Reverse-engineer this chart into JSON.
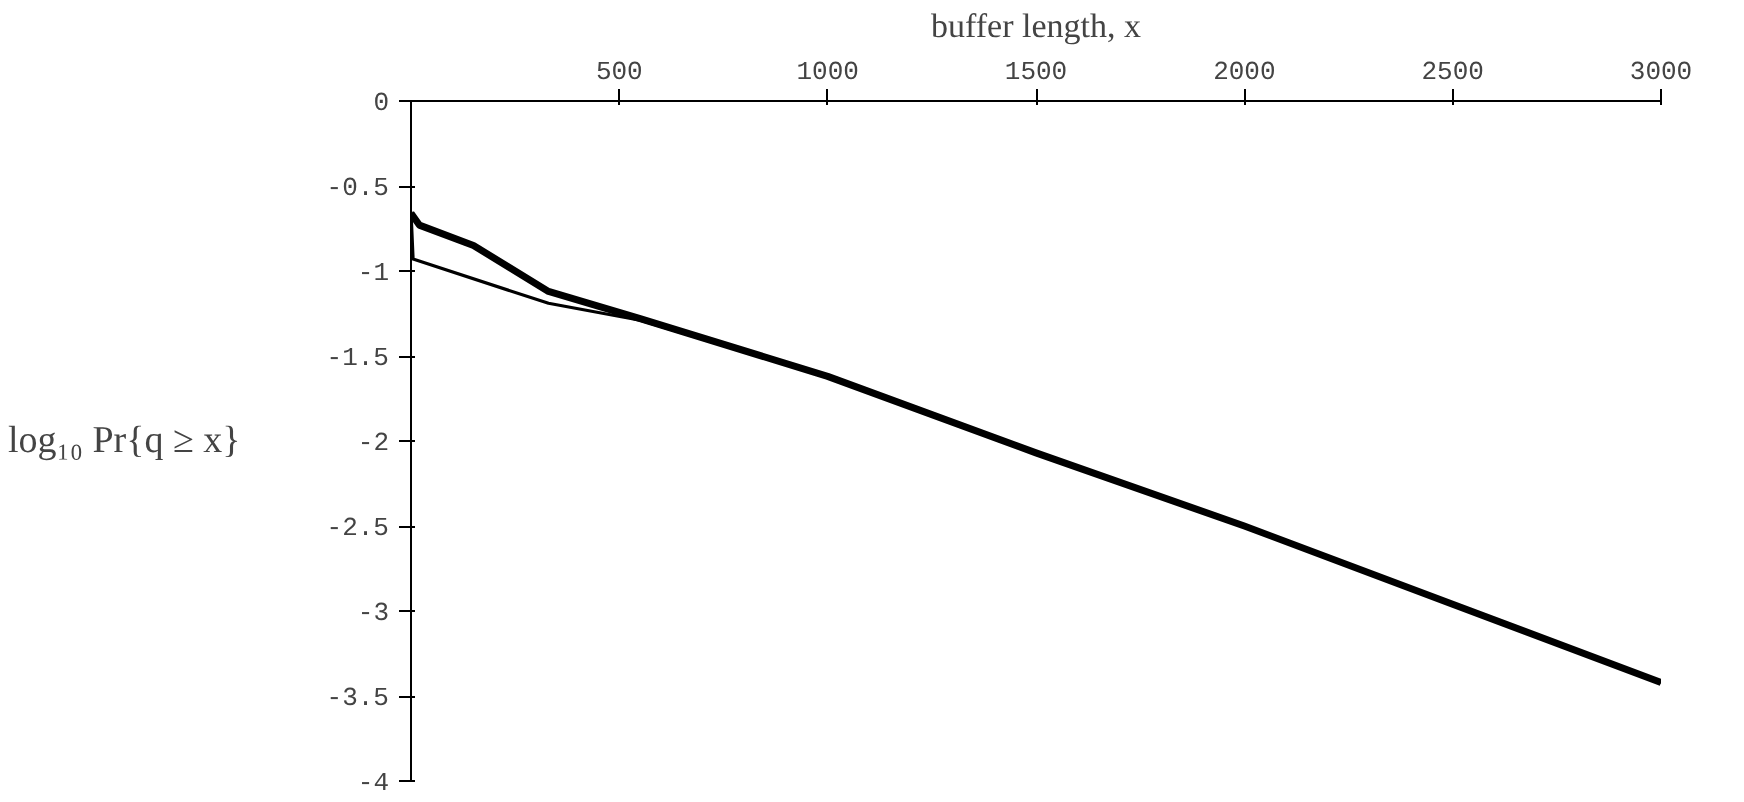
{
  "chart_data": {
    "type": "line",
    "xlabel": "buffer length, x",
    "ylabel": "log₁₀ Pr{q ≥ x}",
    "xlim": [
      0,
      3000
    ],
    "ylim": [
      -4,
      0
    ],
    "xticks": [
      500,
      1000,
      1500,
      2000,
      2500,
      3000
    ],
    "yticks": [
      0,
      -0.5,
      -1,
      -1.5,
      -2,
      -2.5,
      -3,
      -3.5,
      -4
    ],
    "grid": false,
    "marker": "none",
    "line_style": "solid",
    "series": [
      {
        "color": "#000000",
        "x": [
          0,
          20,
          150,
          330,
          550,
          1000,
          1500,
          2000,
          2500,
          3000
        ],
        "values": [
          -0.66,
          -0.73,
          -0.85,
          -1.12,
          -1.28,
          -1.62,
          -2.07,
          -2.5,
          -2.96,
          -3.42
        ]
      },
      {
        "color": "#000000",
        "x": [
          0,
          5,
          330,
          550,
          1000,
          1500,
          2000,
          2500,
          3000
        ],
        "values": [
          -0.65,
          -0.93,
          -1.19,
          -1.29,
          -1.62,
          -2.07,
          -2.5,
          -2.96,
          -3.42
        ]
      }
    ]
  }
}
